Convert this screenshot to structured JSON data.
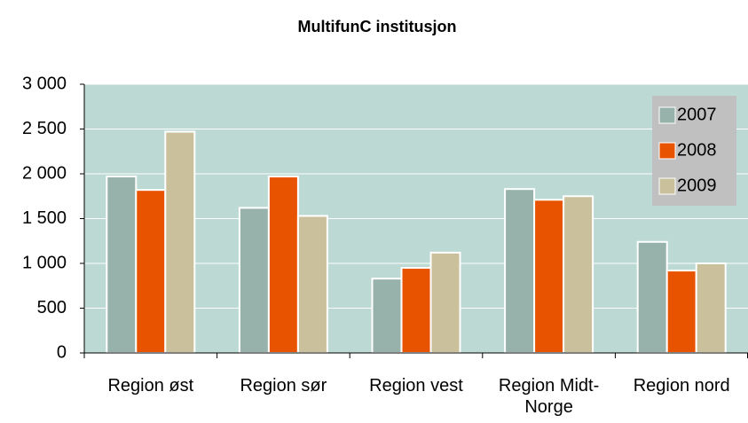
{
  "chart_data": {
    "type": "bar",
    "title": "MultifunC institusjon",
    "categories": [
      "Region øst",
      "Region sør",
      "Region vest",
      "Region Midt-Norge",
      "Region nord"
    ],
    "series": [
      {
        "name": "2007",
        "color": "#97b1ab",
        "values": [
          1970,
          1620,
          830,
          1830,
          1240
        ]
      },
      {
        "name": "2008",
        "color": "#e85300",
        "values": [
          1820,
          1970,
          950,
          1710,
          920
        ]
      },
      {
        "name": "2009",
        "color": "#cac19c",
        "values": [
          2470,
          1530,
          1120,
          1750,
          1000
        ]
      }
    ],
    "ylim": [
      0,
      3000
    ],
    "yticks": [
      0,
      500,
      {
        "value": 1000,
        "label": "1 000"
      },
      {
        "value": 1500,
        "label": "1 500"
      },
      {
        "value": 2000,
        "label": "2 000"
      },
      {
        "value": 2500,
        "label": "2 500"
      },
      {
        "value": 3000,
        "label": "3 000"
      }
    ],
    "grid": true,
    "legend": "top-right"
  }
}
